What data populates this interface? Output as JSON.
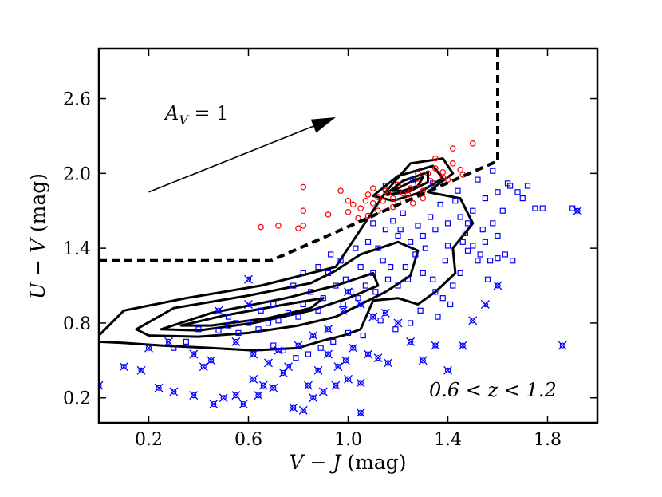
{
  "chart_data": {
    "type": "scatter",
    "title": "",
    "xlabel": {
      "var": "V − J",
      "unit": " (mag)"
    },
    "ylabel": {
      "var": "U − V",
      "unit": " (mag)"
    },
    "xlim": [
      0.0,
      2.0
    ],
    "ylim": [
      0.0,
      3.0
    ],
    "xticks": [
      0.2,
      0.6,
      1.0,
      1.4,
      1.8
    ],
    "xtick_labels": [
      "0.2",
      "0.6",
      "1.0",
      "1.4",
      "1.8"
    ],
    "yticks": [
      0.2,
      0.8,
      1.4,
      2.0,
      2.6
    ],
    "ytick_labels": [
      "0.2",
      "0.8",
      "1.4",
      "2.0",
      "2.6"
    ],
    "grid": false,
    "annotations": {
      "redshift_range": "0.6 < z < 1.2",
      "extinction_vector": "A_V = 1"
    },
    "extinction_vector": {
      "from": [
        0.2,
        1.85
      ],
      "to": [
        0.95,
        2.45
      ]
    },
    "selection_boundary": [
      [
        0.0,
        1.3
      ],
      [
        0.69,
        1.3
      ],
      [
        1.6,
        2.1
      ],
      [
        1.6,
        3.0
      ]
    ],
    "colors": {
      "quiescent": "#ff0000",
      "star_forming": "#0000ff",
      "crossed": "#0000ff",
      "contour": "#000000"
    },
    "series": [
      {
        "marker": "circle",
        "color": "#ff0000",
        "points": [
          [
            0.82,
            1.89
          ],
          [
            0.82,
            1.7
          ],
          [
            0.82,
            1.58
          ],
          [
            0.65,
            1.57
          ],
          [
            0.72,
            1.58
          ],
          [
            0.8,
            1.56
          ],
          [
            0.92,
            1.67
          ],
          [
            0.97,
            1.86
          ],
          [
            1.0,
            1.78
          ],
          [
            1.05,
            1.72
          ],
          [
            1.08,
            1.83
          ],
          [
            1.1,
            1.88
          ],
          [
            1.12,
            1.81
          ],
          [
            1.15,
            1.86
          ],
          [
            1.18,
            1.8
          ],
          [
            1.2,
            1.91
          ],
          [
            1.22,
            1.84
          ],
          [
            1.25,
            1.88
          ],
          [
            1.28,
            1.92
          ],
          [
            1.3,
            1.86
          ],
          [
            1.32,
            2.0
          ],
          [
            1.35,
            2.04
          ],
          [
            1.38,
            2.01
          ],
          [
            1.42,
            2.08
          ],
          [
            1.45,
            2.03
          ],
          [
            1.5,
            2.24
          ],
          [
            1.42,
            2.2
          ],
          [
            1.35,
            2.12
          ],
          [
            1.4,
            1.95
          ],
          [
            1.26,
            1.76
          ],
          [
            1.18,
            1.73
          ],
          [
            1.12,
            1.7
          ],
          [
            1.08,
            1.66
          ],
          [
            1.04,
            1.64
          ],
          [
            1.0,
            1.69
          ],
          [
            1.07,
            1.78
          ],
          [
            1.14,
            1.78
          ],
          [
            1.24,
            1.83
          ],
          [
            1.33,
            1.94
          ],
          [
            1.46,
            1.99
          ],
          [
            1.3,
            1.8
          ],
          [
            1.2,
            1.77
          ],
          [
            1.16,
            1.84
          ],
          [
            1.1,
            1.76
          ],
          [
            1.02,
            1.75
          ],
          [
            1.28,
            2.0
          ],
          [
            1.38,
            1.97
          ]
        ]
      },
      {
        "marker": "square",
        "color": "#0000ff",
        "points": [
          [
            1.1,
            1.6
          ],
          [
            1.15,
            1.55
          ],
          [
            1.2,
            1.5
          ],
          [
            1.25,
            1.45
          ],
          [
            1.3,
            1.5
          ],
          [
            1.35,
            1.55
          ],
          [
            1.4,
            1.6
          ],
          [
            1.45,
            1.65
          ],
          [
            1.5,
            1.7
          ],
          [
            1.55,
            1.8
          ],
          [
            1.6,
            1.85
          ],
          [
            1.65,
            1.9
          ],
          [
            1.7,
            1.8
          ],
          [
            1.75,
            1.72
          ],
          [
            1.72,
            1.9
          ],
          [
            1.68,
            1.85
          ],
          [
            1.62,
            1.7
          ],
          [
            1.58,
            1.6
          ],
          [
            1.55,
            1.45
          ],
          [
            1.52,
            1.3
          ],
          [
            1.48,
            1.38
          ],
          [
            1.45,
            1.2
          ],
          [
            1.42,
            1.1
          ],
          [
            1.38,
            1.0
          ],
          [
            1.35,
            1.05
          ],
          [
            1.3,
            1.2
          ],
          [
            1.27,
            1.35
          ],
          [
            1.24,
            1.15
          ],
          [
            1.2,
            1.1
          ],
          [
            1.17,
            1.25
          ],
          [
            1.14,
            1.3
          ],
          [
            1.1,
            1.2
          ],
          [
            1.07,
            1.1
          ],
          [
            1.04,
            1.0
          ],
          [
            1.01,
            1.05
          ],
          [
            0.98,
            0.95
          ],
          [
            0.95,
            1.1
          ],
          [
            0.92,
            1.2
          ],
          [
            0.9,
            1.0
          ],
          [
            0.88,
            0.9
          ],
          [
            0.85,
            1.05
          ],
          [
            0.82,
            0.95
          ],
          [
            0.8,
            0.85
          ],
          [
            0.76,
            0.88
          ],
          [
            0.72,
            0.82
          ],
          [
            0.68,
            0.8
          ],
          [
            0.64,
            0.75
          ],
          [
            0.6,
            0.8
          ],
          [
            0.56,
            0.72
          ],
          [
            0.52,
            0.78
          ],
          [
            0.48,
            0.74
          ],
          [
            0.4,
            0.75
          ],
          [
            0.3,
            0.6
          ],
          [
            0.35,
            0.65
          ],
          [
            0.52,
            0.85
          ],
          [
            0.55,
            0.8
          ],
          [
            0.65,
            0.9
          ],
          [
            0.7,
            0.95
          ],
          [
            0.78,
            1.1
          ],
          [
            0.82,
            1.2
          ],
          [
            0.88,
            1.25
          ],
          [
            0.93,
            1.35
          ],
          [
            0.97,
            1.3
          ],
          [
            1.03,
            1.4
          ],
          [
            1.08,
            1.45
          ],
          [
            1.12,
            1.4
          ],
          [
            1.18,
            1.62
          ],
          [
            1.22,
            1.68
          ],
          [
            1.28,
            1.58
          ],
          [
            1.33,
            1.65
          ],
          [
            1.37,
            1.75
          ],
          [
            1.43,
            1.78
          ],
          [
            1.47,
            1.52
          ],
          [
            1.5,
            1.42
          ],
          [
            1.53,
            1.35
          ],
          [
            1.57,
            1.3
          ],
          [
            1.6,
            1.32
          ],
          [
            1.63,
            1.35
          ],
          [
            1.66,
            1.3
          ],
          [
            1.9,
            1.72
          ],
          [
            1.78,
            1.72
          ],
          [
            1.56,
            1.15
          ],
          [
            1.41,
            0.95
          ],
          [
            1.36,
            0.85
          ],
          [
            1.29,
            0.9
          ],
          [
            1.25,
            0.8
          ],
          [
            1.19,
            0.75
          ],
          [
            1.13,
            0.82
          ],
          [
            1.06,
            0.7
          ],
          [
            1.0,
            0.72
          ],
          [
            0.94,
            0.65
          ],
          [
            0.89,
            0.6
          ],
          [
            0.84,
            0.55
          ],
          [
            0.79,
            0.52
          ],
          [
            0.74,
            0.58
          ],
          [
            0.7,
            0.62
          ],
          [
            1.15,
            1.9
          ],
          [
            1.26,
            1.95
          ],
          [
            1.34,
            1.92
          ],
          [
            1.44,
            1.86
          ],
          [
            1.52,
            1.95
          ],
          [
            1.58,
            2.02
          ],
          [
            1.64,
            1.92
          ],
          [
            1.21,
            1.55
          ],
          [
            1.31,
            1.4
          ],
          [
            1.39,
            1.3
          ],
          [
            1.46,
            1.45
          ],
          [
            1.54,
            1.55
          ],
          [
            1.11,
            1.05
          ],
          [
            1.05,
            1.25
          ],
          [
            0.99,
            1.15
          ],
          [
            1.16,
            1.15
          ],
          [
            1.23,
            1.25
          ],
          [
            1.34,
            1.15
          ],
          [
            1.4,
            1.42
          ],
          [
            1.48,
            1.6
          ],
          [
            1.6,
            1.5
          ]
        ]
      },
      {
        "marker": "x-circle",
        "color": "#0000ff",
        "points": [
          [
            0.0,
            0.3
          ],
          [
            0.1,
            0.45
          ],
          [
            0.17,
            0.42
          ],
          [
            0.24,
            0.28
          ],
          [
            0.2,
            0.6
          ],
          [
            0.45,
            0.5
          ],
          [
            0.48,
            0.9
          ],
          [
            0.6,
            1.15
          ],
          [
            0.6,
            0.95
          ],
          [
            0.62,
            0.55
          ],
          [
            0.55,
            0.65
          ],
          [
            0.72,
            0.58
          ],
          [
            0.8,
            0.62
          ],
          [
            0.86,
            0.7
          ],
          [
            0.92,
            0.75
          ],
          [
            0.98,
            0.9
          ],
          [
            1.0,
            1.05
          ],
          [
            1.05,
            0.95
          ],
          [
            1.1,
            0.85
          ],
          [
            1.15,
            0.88
          ],
          [
            1.2,
            0.8
          ],
          [
            1.25,
            0.65
          ],
          [
            1.3,
            0.5
          ],
          [
            1.35,
            0.62
          ],
          [
            1.4,
            0.42
          ],
          [
            1.46,
            0.62
          ],
          [
            1.5,
            0.82
          ],
          [
            1.55,
            0.95
          ],
          [
            1.6,
            1.1
          ],
          [
            1.86,
            0.62
          ],
          [
            1.92,
            1.7
          ],
          [
            0.55,
            0.22
          ],
          [
            0.62,
            0.35
          ],
          [
            0.66,
            0.3
          ],
          [
            0.7,
            0.28
          ],
          [
            0.74,
            0.4
          ],
          [
            0.78,
            0.12
          ],
          [
            0.82,
            0.1
          ],
          [
            0.86,
            0.2
          ],
          [
            0.9,
            0.25
          ],
          [
            0.95,
            0.3
          ],
          [
            1.0,
            0.35
          ],
          [
            1.05,
            0.32
          ],
          [
            1.08,
            0.55
          ],
          [
            1.12,
            0.52
          ],
          [
            1.16,
            0.48
          ],
          [
            1.02,
            0.6
          ],
          [
            0.96,
            0.45
          ],
          [
            0.88,
            0.42
          ],
          [
            0.84,
            0.3
          ],
          [
            0.76,
            0.45
          ],
          [
            0.68,
            0.48
          ],
          [
            0.64,
            0.22
          ],
          [
            0.58,
            0.15
          ],
          [
            0.5,
            0.2
          ],
          [
            0.46,
            0.15
          ],
          [
            0.38,
            0.22
          ],
          [
            0.3,
            0.25
          ],
          [
            0.28,
            0.65
          ],
          [
            0.38,
            0.55
          ],
          [
            0.42,
            0.45
          ],
          [
            1.05,
            0.08
          ],
          [
            0.99,
            0.5
          ],
          [
            0.92,
            0.55
          ]
        ]
      }
    ],
    "contours": [
      [
        [
          0.0,
          0.7
        ],
        [
          0.1,
          0.9
        ],
        [
          0.35,
          1.0
        ],
        [
          0.65,
          1.1
        ],
        [
          0.95,
          1.25
        ],
        [
          1.05,
          1.55
        ],
        [
          1.15,
          1.85
        ],
        [
          1.25,
          2.08
        ],
        [
          1.38,
          2.12
        ],
        [
          1.42,
          2.0
        ],
        [
          1.32,
          1.85
        ],
        [
          1.45,
          1.8
        ],
        [
          1.5,
          1.6
        ],
        [
          1.42,
          1.4
        ],
        [
          1.43,
          1.2
        ],
        [
          1.35,
          1.05
        ],
        [
          1.28,
          0.95
        ],
        [
          1.2,
          1.0
        ],
        [
          1.1,
          0.98
        ],
        [
          1.05,
          0.75
        ],
        [
          0.98,
          0.7
        ],
        [
          0.9,
          0.66
        ],
        [
          0.8,
          0.6
        ],
        [
          0.62,
          0.58
        ],
        [
          0.45,
          0.6
        ],
        [
          0.25,
          0.62
        ],
        [
          0.1,
          0.64
        ],
        [
          0.0,
          0.65
        ]
      ],
      [
        [
          0.15,
          0.75
        ],
        [
          0.3,
          0.92
        ],
        [
          0.6,
          1.02
        ],
        [
          0.85,
          1.12
        ],
        [
          0.95,
          1.22
        ],
        [
          1.05,
          1.35
        ],
        [
          1.2,
          1.45
        ],
        [
          1.28,
          1.38
        ],
        [
          1.25,
          1.18
        ],
        [
          1.15,
          1.05
        ],
        [
          1.05,
          0.95
        ],
        [
          0.95,
          0.85
        ],
        [
          0.8,
          0.78
        ],
        [
          0.6,
          0.72
        ],
        [
          0.4,
          0.69
        ],
        [
          0.2,
          0.7
        ]
      ],
      [
        [
          0.25,
          0.75
        ],
        [
          0.45,
          0.88
        ],
        [
          0.75,
          1.0
        ],
        [
          0.95,
          1.1
        ],
        [
          1.1,
          1.2
        ],
        [
          1.12,
          1.1
        ],
        [
          1.0,
          1.0
        ],
        [
          0.85,
          0.9
        ],
        [
          0.62,
          0.8
        ],
        [
          0.4,
          0.74
        ]
      ],
      [
        [
          0.33,
          0.78
        ],
        [
          0.5,
          0.86
        ],
        [
          0.75,
          0.95
        ],
        [
          0.9,
          1.0
        ],
        [
          0.85,
          0.92
        ],
        [
          0.68,
          0.84
        ],
        [
          0.45,
          0.78
        ]
      ],
      [
        [
          1.1,
          1.82
        ],
        [
          1.2,
          1.98
        ],
        [
          1.34,
          2.06
        ],
        [
          1.38,
          1.96
        ],
        [
          1.28,
          1.84
        ],
        [
          1.18,
          1.78
        ]
      ],
      [
        [
          1.15,
          1.83
        ],
        [
          1.22,
          1.94
        ],
        [
          1.32,
          2.01
        ],
        [
          1.32,
          1.93
        ],
        [
          1.24,
          1.85
        ]
      ],
      [
        [
          1.18,
          1.86
        ],
        [
          1.26,
          1.94
        ],
        [
          1.3,
          1.97
        ],
        [
          1.28,
          1.9
        ],
        [
          1.22,
          1.86
        ]
      ]
    ]
  }
}
